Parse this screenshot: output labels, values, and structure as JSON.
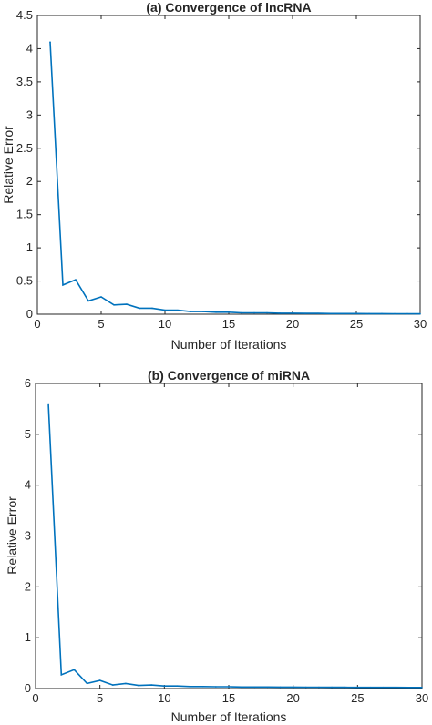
{
  "chart_data": [
    {
      "type": "line",
      "title": "(a) Convergence of lncRNA",
      "xlabel": "Number of Iterations",
      "ylabel": "Relative Error",
      "xlim": [
        0,
        30
      ],
      "ylim": [
        0,
        4.5
      ],
      "xticks": [
        0,
        5,
        10,
        15,
        20,
        25,
        30
      ],
      "yticks": [
        0,
        0.5,
        1,
        1.5,
        2,
        2.5,
        3,
        3.5,
        4,
        4.5
      ],
      "grid": false,
      "line_color": "#0072BD",
      "series": [
        {
          "x": [
            1,
            2,
            3,
            4,
            5,
            6,
            7,
            8,
            9,
            10,
            11,
            12,
            13,
            14,
            15,
            16,
            17,
            18,
            19,
            20,
            21,
            22,
            23,
            24,
            25,
            26,
            27,
            28,
            29,
            30
          ],
          "values": [
            4.1,
            0.44,
            0.52,
            0.2,
            0.26,
            0.14,
            0.15,
            0.09,
            0.09,
            0.06,
            0.06,
            0.04,
            0.04,
            0.03,
            0.03,
            0.02,
            0.02,
            0.02,
            0.015,
            0.015,
            0.012,
            0.012,
            0.01,
            0.01,
            0.01,
            0.008,
            0.008,
            0.007,
            0.007,
            0.006
          ]
        }
      ]
    },
    {
      "type": "line",
      "title": "(b)  Convergence of miRNA",
      "xlabel": "Number of Iterations",
      "ylabel": "Relative Error",
      "xlim": [
        0,
        30
      ],
      "ylim": [
        0,
        6
      ],
      "xticks": [
        0,
        5,
        10,
        15,
        20,
        25,
        30
      ],
      "yticks": [
        0,
        1,
        2,
        3,
        4,
        5,
        6
      ],
      "grid": false,
      "line_color": "#0072BD",
      "series": [
        {
          "x": [
            1,
            2,
            3,
            4,
            5,
            6,
            7,
            8,
            9,
            10,
            11,
            12,
            13,
            14,
            15,
            16,
            17,
            18,
            19,
            20,
            21,
            22,
            23,
            24,
            25,
            26,
            27,
            28,
            29,
            30
          ],
          "values": [
            5.58,
            0.27,
            0.37,
            0.1,
            0.16,
            0.07,
            0.1,
            0.06,
            0.07,
            0.05,
            0.05,
            0.04,
            0.04,
            0.035,
            0.035,
            0.03,
            0.03,
            0.03,
            0.028,
            0.028,
            0.026,
            0.026,
            0.025,
            0.025,
            0.024,
            0.024,
            0.023,
            0.023,
            0.022,
            0.022
          ]
        }
      ]
    }
  ]
}
